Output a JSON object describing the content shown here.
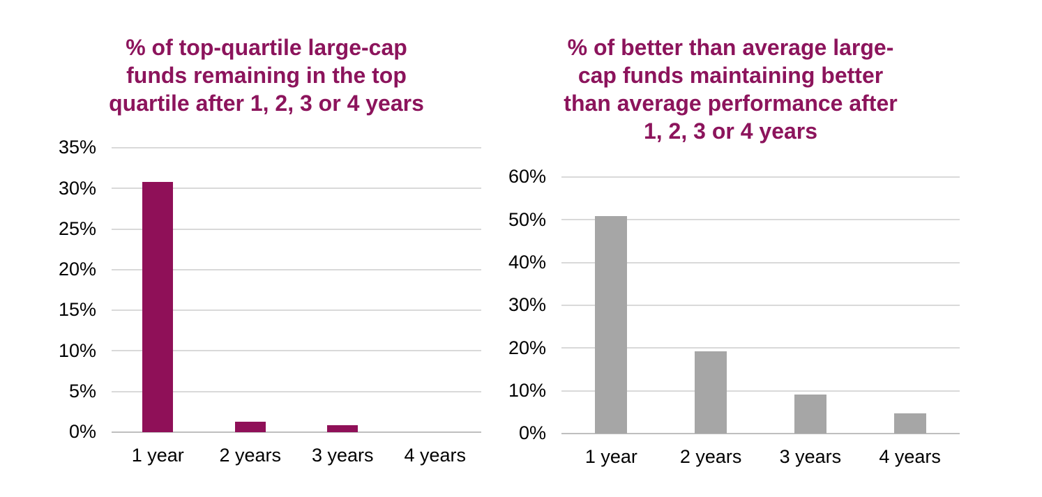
{
  "colors": {
    "background": "#FFFFFF",
    "title": "#8C145C",
    "axis_text": "#000000",
    "gridline": "#D9D9D9",
    "baseline": "#BFBFBF",
    "magenta_bar": "#8F1058",
    "gray_bar": "#A6A6A6"
  },
  "chart_data": [
    {
      "type": "bar",
      "title": "% of top-quartile large-cap funds remaining in the top quartile after 1, 2, 3 or 4 years",
      "title_lines": [
        "% of top-quartile large-cap",
        "funds remaining in the top",
        "quartile after 1, 2, 3 or 4 years"
      ],
      "categories": [
        "1 year",
        "2 years",
        "3 years",
        "4 years"
      ],
      "values": [
        30.8,
        1.3,
        0.9,
        0
      ],
      "unit": "%",
      "xlabel": "",
      "ylabel": "",
      "ylim": [
        0,
        35
      ],
      "ytick_step": 5,
      "ytick_labels": [
        "35%",
        "30%",
        "25%",
        "20%",
        "15%",
        "10%",
        "5%",
        "0%"
      ],
      "grid": true,
      "legend": "none",
      "bar_color": "#8F1058"
    },
    {
      "type": "bar",
      "title": "% of better than average large-cap funds maintaining better than average performance after 1, 2, 3 or 4 years",
      "title_lines": [
        "% of better than average large-",
        "cap funds maintaining better",
        "than average performance after",
        "1, 2, 3 or 4 years"
      ],
      "categories": [
        "1 year",
        "2 years",
        "3 years",
        "4 years"
      ],
      "values": [
        50.9,
        19.3,
        9.2,
        4.7
      ],
      "unit": "%",
      "xlabel": "",
      "ylabel": "",
      "ylim": [
        0,
        60
      ],
      "ytick_step": 10,
      "ytick_labels": [
        "60%",
        "50%",
        "40%",
        "30%",
        "20%",
        "10%",
        "0%"
      ],
      "grid": true,
      "legend": "none",
      "bar_color": "#A6A6A6"
    }
  ]
}
